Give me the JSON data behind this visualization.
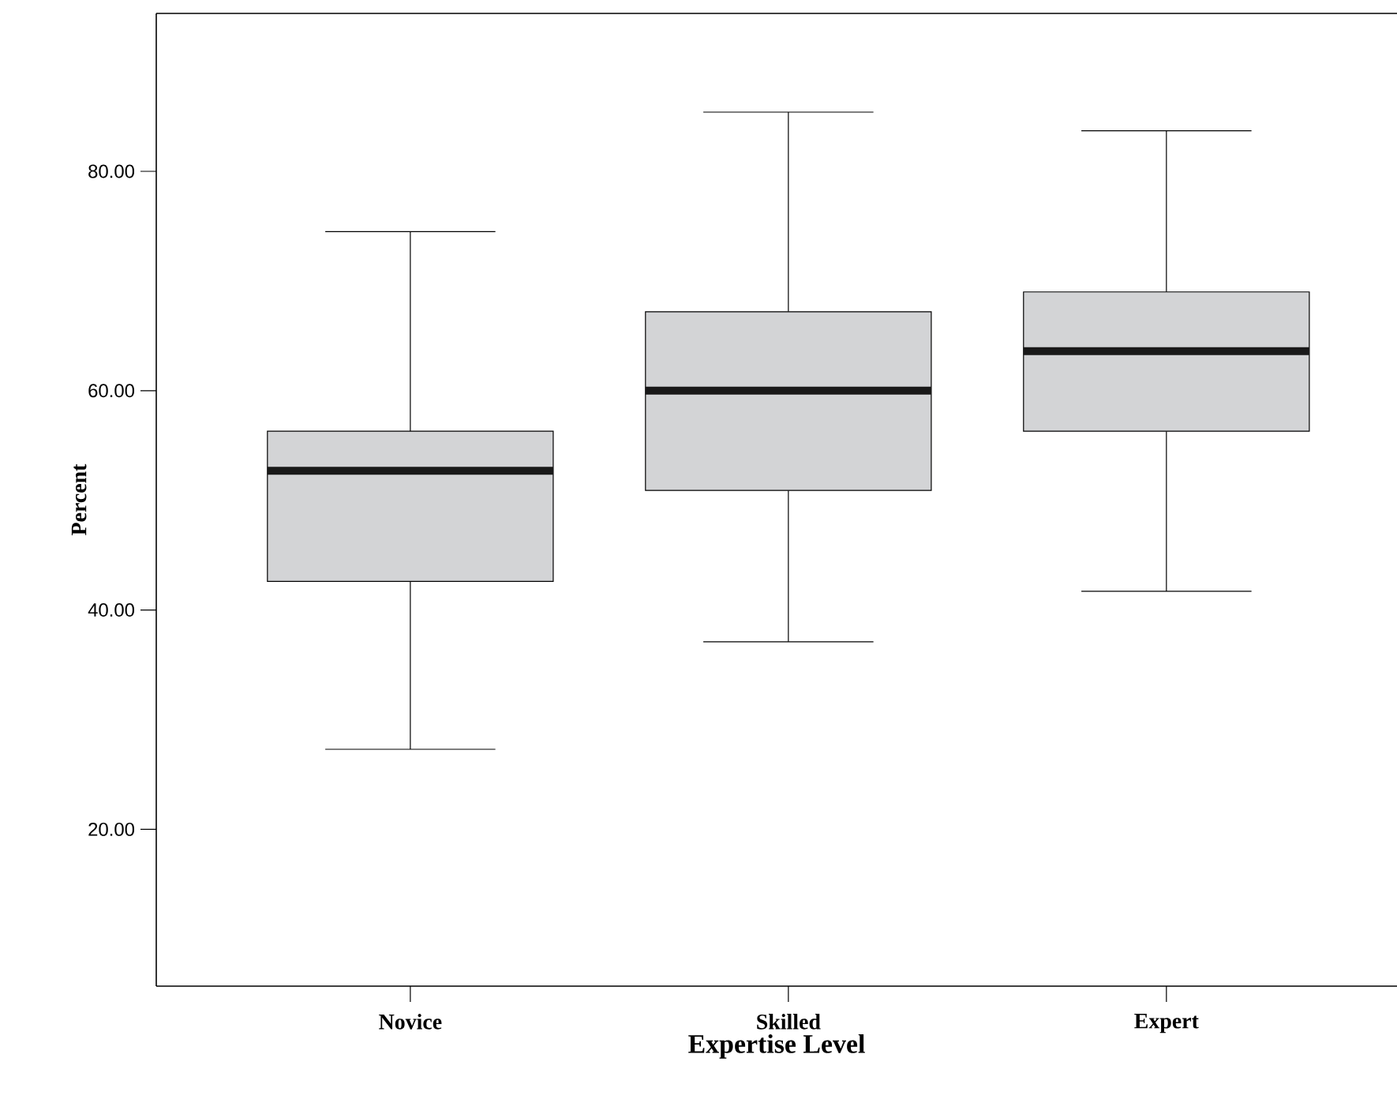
{
  "chart_data": {
    "type": "box",
    "xlabel": "Expertise Level",
    "ylabel": "Percent",
    "categories": [
      "Novice",
      "Skilled",
      "Expert"
    ],
    "color": "#d3d4d6",
    "ylim": [
      5.7,
      94.4
    ],
    "yticks": [
      {
        "value": 20,
        "label": "20.00"
      },
      {
        "value": 40,
        "label": "40.00"
      },
      {
        "value": 60,
        "label": "60.00"
      },
      {
        "value": 80,
        "label": "80.00"
      }
    ],
    "boxes": [
      {
        "low": 27.3,
        "q1": 42.6,
        "median": 52.7,
        "q3": 56.3,
        "high": 74.5
      },
      {
        "low": 37.1,
        "q1": 50.9,
        "median": 60.0,
        "q3": 67.2,
        "high": 85.4
      },
      {
        "low": 41.7,
        "q1": 56.3,
        "median": 63.6,
        "q3": 69.0,
        "high": 83.7
      }
    ]
  }
}
